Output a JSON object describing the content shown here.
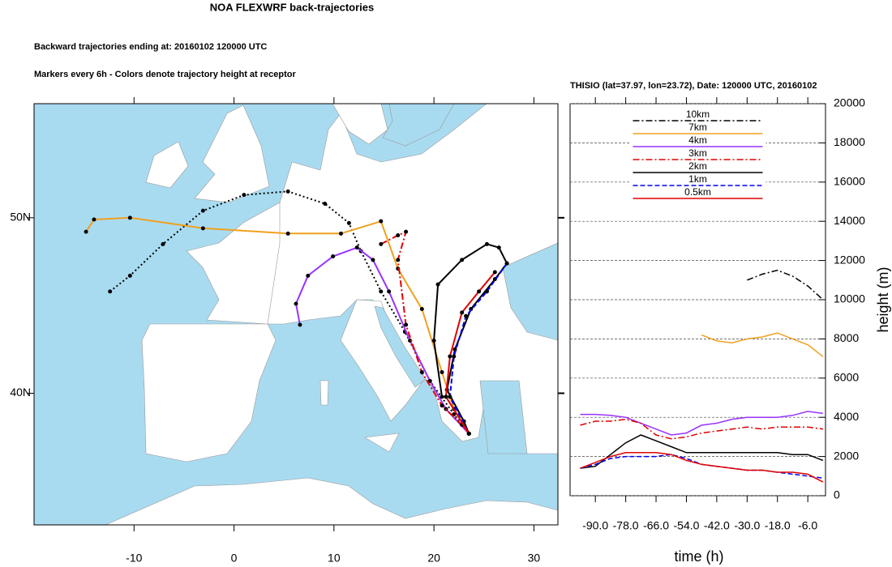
{
  "chart_data": [
    {
      "type": "map",
      "title": "NOA FLEXWRF back-trajectories",
      "subtitles": [
        "Backward trajectories ending at: 20160102  120000 UTC",
        "Markers every 6h - Colors denote trajectory height at receptor"
      ],
      "xlim": [
        -20,
        32.4
      ],
      "ylim": [
        32.5,
        56.5
      ],
      "xticks": [
        -10,
        0,
        10,
        20,
        30
      ],
      "yticks": [
        {
          "value": 50,
          "label": "50N"
        },
        {
          "value": 40,
          "label": "40N"
        }
      ],
      "series": [
        {
          "color": "#000000",
          "dash": "dotted",
          "x": [
            -12.4,
            -10.4,
            -7.1,
            -3.1,
            1,
            5.4,
            9.1,
            11.5,
            12.7,
            14.7,
            17.1,
            19.6,
            22,
            23.5
          ],
          "values": [
            45.8,
            46.7,
            48.5,
            50.4,
            51.3,
            51.5,
            50.8,
            49.7,
            48.1,
            45.8,
            43.5,
            40.7,
            38.8,
            37.7
          ]
        },
        {
          "color": "#f0a01e",
          "dash": "solid",
          "x": [
            -14.8,
            -14,
            -10.4,
            -3.1,
            5.4,
            10.7,
            14.7,
            16.4,
            18.8,
            20.8,
            22,
            23.5
          ],
          "values": [
            49.2,
            49.9,
            50,
            49.4,
            49.1,
            49.1,
            49.8,
            47.1,
            44.8,
            41.2,
            39.1,
            37.7
          ]
        },
        {
          "color": "#9933ff",
          "dash": "solid",
          "x": [
            6.6,
            6.2,
            7.4,
            9.9,
            12.3,
            13.9,
            15.5,
            17.6,
            19.6,
            21.2,
            23.5
          ],
          "values": [
            43.9,
            45.1,
            46.7,
            47.8,
            48.3,
            47.6,
            45.8,
            43,
            40.7,
            39.1,
            37.7
          ]
        },
        {
          "color": "#e00000",
          "dash": "dashdot",
          "x": [
            14.7,
            16.4,
            17.2,
            16.4,
            17.2,
            18.8,
            20.8,
            22.8,
            23.5
          ],
          "values": [
            48.5,
            49,
            49.2,
            47.6,
            43.9,
            41.2,
            39.3,
            38.2,
            37.7
          ]
        },
        {
          "color": "#000000",
          "dash": "solid",
          "x": [
            20.8,
            20,
            20.4,
            22.8,
            25.3,
            26.5,
            27.3,
            26.1,
            23.7,
            22.1,
            21.3,
            23,
            23.5
          ],
          "values": [
            39.8,
            43,
            46.2,
            47.6,
            48.5,
            48.3,
            47.4,
            46.5,
            44.8,
            42.5,
            40.2,
            38.4,
            37.7
          ]
        },
        {
          "color": "#0000ee",
          "dash": "dash",
          "x": [
            27.3,
            25.3,
            23.2,
            22,
            21.6,
            23.5
          ],
          "values": [
            47.4,
            45.8,
            44.4,
            42.1,
            39.8,
            37.7
          ]
        },
        {
          "color": "#e00000",
          "dash": "solid",
          "x": [
            26.1,
            24.5,
            22.8,
            21.6,
            21.2,
            23.5
          ],
          "values": [
            46.9,
            45.8,
            44.6,
            42.1,
            39.8,
            37.7
          ]
        }
      ]
    },
    {
      "type": "line",
      "title": "THISIO (lat=37.97,  lon=23.72), Date: 120000 UTC, 20160102",
      "xlabel": "time (h)",
      "ylabel": "height (m)",
      "x": [
        -96,
        -90,
        -84,
        -78,
        -72,
        -66,
        -60,
        -54,
        -48,
        -42,
        -36,
        -30,
        -24,
        -18,
        -12,
        -6,
        0
      ],
      "xlim": [
        -100,
        1
      ],
      "xticks": [
        {
          "value": -90,
          "label": "-90.0"
        },
        {
          "value": -78,
          "label": "-78.0"
        },
        {
          "value": -66,
          "label": "-66.0"
        },
        {
          "value": -54,
          "label": "-54.0"
        },
        {
          "value": -42,
          "label": "-42.0"
        },
        {
          "value": -30,
          "label": "-30.0"
        },
        {
          "value": -18,
          "label": "-18.0"
        },
        {
          "value": -6,
          "label": "-6.0"
        }
      ],
      "ylim": [
        0,
        20000
      ],
      "yticks": [
        0,
        2000,
        4000,
        6000,
        8000,
        10000,
        12000,
        14000,
        16000,
        18000,
        20000
      ],
      "grid": true,
      "legend": "upper center",
      "series": [
        {
          "name": "10km",
          "color": "#000000",
          "dash": "dashdot",
          "values": [
            null,
            null,
            null,
            null,
            null,
            null,
            null,
            null,
            null,
            null,
            null,
            11000,
            11300,
            11500,
            11200,
            10700,
            10000
          ]
        },
        {
          "name": "7km",
          "color": "#f0a01e",
          "dash": "solid",
          "values": [
            null,
            null,
            null,
            null,
            null,
            null,
            null,
            null,
            8200,
            7900,
            7800,
            8000,
            8100,
            8300,
            8000,
            7700,
            7100
          ]
        },
        {
          "name": "4km",
          "color": "#9933ff",
          "dash": "solid",
          "values": [
            4150,
            4150,
            4100,
            4000,
            3700,
            3400,
            3100,
            3200,
            3600,
            3700,
            3900,
            4000,
            4000,
            4000,
            4100,
            4300,
            4200
          ]
        },
        {
          "name": "3km",
          "color": "#e00000",
          "dash": "dashdot",
          "values": [
            3600,
            3800,
            3800,
            3900,
            3700,
            3100,
            2900,
            3000,
            3200,
            3300,
            3400,
            3500,
            3400,
            3500,
            3500,
            3500,
            3400
          ]
        },
        {
          "name": "2km",
          "color": "#000000",
          "dash": "solid",
          "values": [
            1400,
            1500,
            2100,
            2700,
            3100,
            2800,
            2500,
            2200,
            2200,
            2200,
            2200,
            2200,
            2200,
            2200,
            2100,
            2100,
            1800
          ]
        },
        {
          "name": "1km",
          "color": "#0000ee",
          "dash": "dash",
          "values": [
            1400,
            1600,
            1900,
            2000,
            2000,
            2000,
            2100,
            1900,
            1600,
            1500,
            1400,
            1300,
            1300,
            1200,
            1100,
            1000,
            900
          ]
        },
        {
          "name": "0.5km",
          "color": "#e00000",
          "dash": "solid",
          "values": [
            1400,
            1700,
            2000,
            2200,
            2200,
            2200,
            2100,
            1800,
            1600,
            1500,
            1400,
            1300,
            1300,
            1200,
            1200,
            1100,
            700
          ]
        }
      ]
    }
  ]
}
